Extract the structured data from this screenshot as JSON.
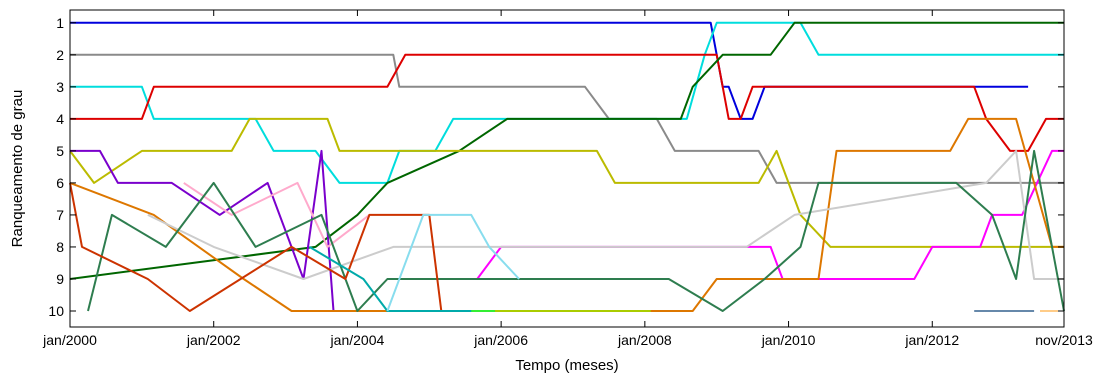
{
  "chart_data": {
    "type": "line",
    "title": "",
    "xlabel": "Tempo (meses)",
    "ylabel": "Ranqueamento de grau",
    "x_unit": "month",
    "xlim": [
      "2000-01",
      "2013-11"
    ],
    "ylim": [
      10.5,
      0.6
    ],
    "y_inverted": true,
    "x_ticks": [
      {
        "x": "2000-01",
        "label": "jan/2000"
      },
      {
        "x": "2002-01",
        "label": "jan/2002"
      },
      {
        "x": "2004-01",
        "label": "jan/2004"
      },
      {
        "x": "2006-01",
        "label": "jan/2006"
      },
      {
        "x": "2008-01",
        "label": "jan/2008"
      },
      {
        "x": "2010-01",
        "label": "jan/2010"
      },
      {
        "x": "2012-01",
        "label": "jan/2012"
      },
      {
        "x": "2013-11",
        "label": "nov/2013"
      }
    ],
    "y_ticks": [
      {
        "y": 1,
        "label": "1"
      },
      {
        "y": 2,
        "label": "2"
      },
      {
        "y": 3,
        "label": "3"
      },
      {
        "y": 4,
        "label": "4"
      },
      {
        "y": 5,
        "label": "5"
      },
      {
        "y": 6,
        "label": "6"
      },
      {
        "y": 7,
        "label": "7"
      },
      {
        "y": 8,
        "label": "8"
      },
      {
        "y": 9,
        "label": "9"
      },
      {
        "y": 10,
        "label": "10"
      }
    ],
    "grid": false,
    "legend": "none",
    "series": [
      {
        "color": "#0000dd",
        "points": [
          [
            "2000-01",
            1
          ],
          [
            "2008-12",
            1
          ],
          [
            "2009-01",
            2
          ],
          [
            "2009-02",
            3
          ],
          [
            "2009-03",
            3
          ],
          [
            "2009-05",
            4
          ],
          [
            "2009-07",
            4
          ],
          [
            "2009-09",
            3
          ],
          [
            "2013-05",
            3
          ]
        ]
      },
      {
        "color": "#8a8a8a",
        "points": [
          [
            "2000-01",
            2
          ],
          [
            "2004-07",
            2
          ],
          [
            "2004-08",
            3
          ],
          [
            "2007-03",
            3
          ],
          [
            "2007-07",
            4
          ],
          [
            "2008-03",
            4
          ],
          [
            "2008-06",
            5
          ],
          [
            "2009-08",
            5
          ],
          [
            "2009-11",
            6
          ],
          [
            "2013-11",
            6
          ]
        ]
      },
      {
        "color": "#00dddd",
        "points": [
          [
            "2000-01",
            3
          ],
          [
            "2001-01",
            3
          ],
          [
            "2001-03",
            4
          ],
          [
            "2002-08",
            4
          ],
          [
            "2002-11",
            5
          ],
          [
            "2003-06",
            5
          ],
          [
            "2003-10",
            6
          ],
          [
            "2004-06",
            6
          ],
          [
            "2004-08",
            5
          ],
          [
            "2005-02",
            5
          ],
          [
            "2005-05",
            4
          ],
          [
            "2008-08",
            4
          ],
          [
            "2008-11",
            2
          ],
          [
            "2009-01",
            1
          ],
          [
            "2010-03",
            1
          ],
          [
            "2010-06",
            2
          ],
          [
            "2013-11",
            2
          ]
        ]
      },
      {
        "color": "#dd0000",
        "points": [
          [
            "2000-01",
            4
          ],
          [
            "2001-01",
            4
          ],
          [
            "2001-03",
            3
          ],
          [
            "2004-06",
            3
          ],
          [
            "2004-09",
            2
          ],
          [
            "2009-01",
            2
          ],
          [
            "2009-03",
            4
          ],
          [
            "2009-05",
            4
          ],
          [
            "2009-07",
            3
          ],
          [
            "2012-08",
            3
          ],
          [
            "2012-10",
            4
          ],
          [
            "2013-02",
            5
          ],
          [
            "2013-05",
            5
          ],
          [
            "2013-08",
            4
          ],
          [
            "2013-11",
            4
          ]
        ]
      },
      {
        "color": "#006600",
        "points": [
          [
            "2000-01",
            9
          ],
          [
            "2003-06",
            8
          ],
          [
            "2004-01",
            7
          ],
          [
            "2004-06",
            6
          ],
          [
            "2005-06",
            5
          ],
          [
            "2006-02",
            4
          ],
          [
            "2008-07",
            4
          ],
          [
            "2008-09",
            3
          ],
          [
            "2009-02",
            2
          ],
          [
            "2009-10",
            2
          ],
          [
            "2010-02",
            1
          ],
          [
            "2013-11",
            1
          ]
        ]
      },
      {
        "color": "#bbbb00",
        "points": [
          [
            "2000-01",
            5
          ],
          [
            "2000-05",
            6
          ],
          [
            "2001-01",
            5
          ],
          [
            "2002-04",
            5
          ],
          [
            "2002-07",
            4
          ],
          [
            "2003-08",
            4
          ],
          [
            "2003-10",
            5
          ],
          [
            "2007-05",
            5
          ],
          [
            "2007-08",
            6
          ],
          [
            "2009-08",
            6
          ],
          [
            "2009-11",
            5
          ],
          [
            "2010-03",
            7
          ],
          [
            "2010-08",
            8
          ],
          [
            "2013-11",
            8
          ]
        ]
      },
      {
        "color": "#7a00cc",
        "points": [
          [
            "2000-01",
            5
          ],
          [
            "2000-06",
            5
          ],
          [
            "2000-09",
            6
          ],
          [
            "2001-06",
            6
          ],
          [
            "2002-02",
            7
          ],
          [
            "2002-10",
            6
          ],
          [
            "2003-04",
            9
          ],
          [
            "2003-07",
            5
          ],
          [
            "2003-09",
            10
          ],
          [
            "2004-02",
            10
          ]
        ]
      },
      {
        "color": "#ff00ff",
        "points": [
          [
            "2005-09",
            9
          ],
          [
            "2006-01",
            8
          ],
          [
            "2009-10",
            8
          ],
          [
            "2009-12",
            9
          ],
          [
            "2011-10",
            9
          ],
          [
            "2012-01",
            8
          ],
          [
            "2012-09",
            8
          ],
          [
            "2012-11",
            7
          ],
          [
            "2013-04",
            7
          ],
          [
            "2013-09",
            5
          ],
          [
            "2013-11",
            5
          ]
        ]
      },
      {
        "color": "#dd7700",
        "points": [
          [
            "2000-01",
            6
          ],
          [
            "2001-03",
            7
          ],
          [
            "2002-06",
            9
          ],
          [
            "2003-02",
            10
          ],
          [
            "2008-09",
            10
          ],
          [
            "2009-01",
            9
          ],
          [
            "2010-06",
            9
          ],
          [
            "2010-09",
            5
          ],
          [
            "2012-04",
            5
          ],
          [
            "2012-07",
            4
          ],
          [
            "2013-03",
            4
          ],
          [
            "2013-06",
            6
          ],
          [
            "2013-09",
            8
          ],
          [
            "2013-11",
            8
          ]
        ]
      },
      {
        "color": "#ffaacc",
        "points": [
          [
            "2001-08",
            6
          ],
          [
            "2002-04",
            7
          ],
          [
            "2003-03",
            6
          ],
          [
            "2003-08",
            8
          ],
          [
            "2004-03",
            7
          ]
        ]
      },
      {
        "color": "#cccccc",
        "points": [
          [
            "2001-02",
            7
          ],
          [
            "2002-01",
            8
          ],
          [
            "2003-04",
            9
          ],
          [
            "2004-07",
            8
          ],
          [
            "2009-06",
            8
          ],
          [
            "2010-02",
            7
          ],
          [
            "2012-10",
            6
          ],
          [
            "2013-03",
            5
          ],
          [
            "2013-06",
            9
          ],
          [
            "2013-11",
            9
          ]
        ]
      },
      {
        "color": "#2e7d4f",
        "points": [
          [
            "2000-04",
            10
          ],
          [
            "2000-08",
            7
          ],
          [
            "2001-05",
            8
          ],
          [
            "2002-01",
            6
          ],
          [
            "2002-08",
            8
          ],
          [
            "2003-07",
            7
          ],
          [
            "2004-01",
            10
          ],
          [
            "2004-06",
            9
          ],
          [
            "2008-05",
            9
          ],
          [
            "2009-02",
            10
          ],
          [
            "2009-09",
            9
          ],
          [
            "2010-03",
            8
          ],
          [
            "2010-06",
            6
          ],
          [
            "2012-05",
            6
          ],
          [
            "2012-11",
            7
          ],
          [
            "2013-03",
            9
          ],
          [
            "2013-06",
            5
          ],
          [
            "2013-11",
            10
          ]
        ]
      },
      {
        "color": "#cc3300",
        "points": [
          [
            "2000-01",
            6
          ],
          [
            "2000-03",
            8
          ],
          [
            "2001-02",
            9
          ],
          [
            "2001-09",
            10
          ],
          [
            "2003-02",
            8
          ],
          [
            "2003-11",
            9
          ],
          [
            "2004-03",
            7
          ],
          [
            "2005-01",
            7
          ],
          [
            "2005-03",
            10
          ],
          [
            "2005-06",
            10
          ]
        ]
      },
      {
        "color": "#00aaaa",
        "points": [
          [
            "2003-05",
            8
          ],
          [
            "2004-02",
            9
          ],
          [
            "2004-06",
            10
          ],
          [
            "2005-10",
            10
          ]
        ]
      },
      {
        "color": "#88ddee",
        "points": [
          [
            "2004-06",
            10
          ],
          [
            "2004-12",
            7
          ],
          [
            "2005-08",
            7
          ],
          [
            "2005-11",
            8
          ],
          [
            "2006-04",
            9
          ]
        ]
      },
      {
        "color": "#33ee33",
        "points": [
          [
            "2005-08",
            10
          ],
          [
            "2005-12",
            10
          ]
        ]
      },
      {
        "color": "#aacc00",
        "points": [
          [
            "2005-12",
            10
          ],
          [
            "2007-06",
            10
          ],
          [
            "2008-02",
            10
          ]
        ]
      },
      {
        "color": "#6688aa",
        "points": [
          [
            "2012-08",
            10
          ],
          [
            "2013-02",
            10
          ],
          [
            "2013-06",
            10
          ]
        ]
      },
      {
        "color": "#ffcc88",
        "points": [
          [
            "2013-07",
            10
          ],
          [
            "2013-10",
            10
          ]
        ]
      }
    ]
  }
}
